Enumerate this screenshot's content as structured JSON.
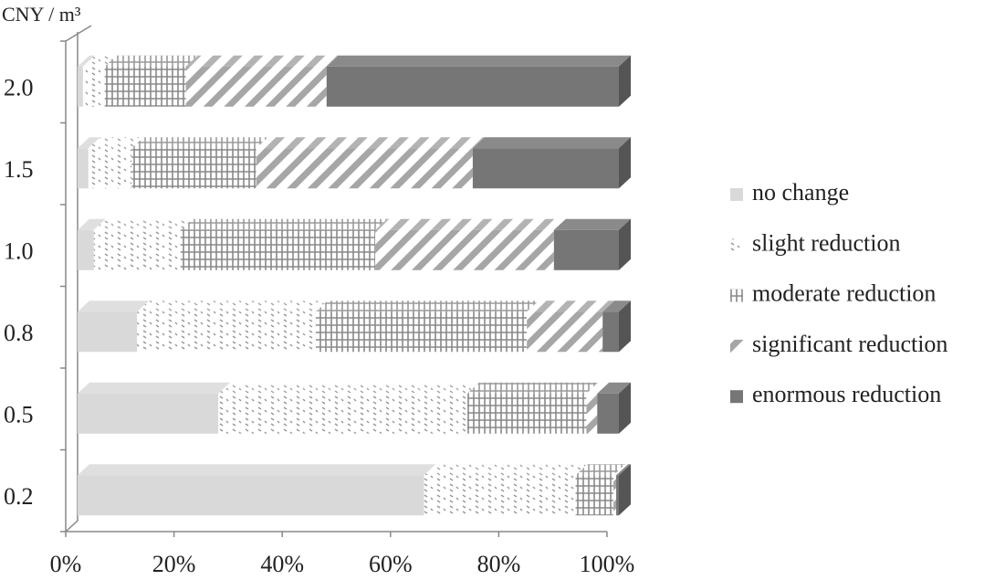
{
  "chart_data": {
    "type": "stacked-bar-horizontal-100",
    "y_axis_title": "CNY / m³",
    "categories": [
      "0.2",
      "0.5",
      "0.8",
      "1.0",
      "1.5",
      "2.0"
    ],
    "series": [
      {
        "name": "no change",
        "color": "#d9d9d9",
        "pattern": "solid",
        "values": [
          64,
          26,
          11,
          3,
          2,
          1
        ]
      },
      {
        "name": "slight reduction",
        "color": "#9a9a9a",
        "pattern": "dots",
        "values": [
          28,
          46,
          33,
          16,
          8,
          4
        ]
      },
      {
        "name": "moderate reduction",
        "color": "#8c8c8c",
        "pattern": "grid",
        "values": [
          7,
          22,
          39,
          36,
          23,
          15
        ]
      },
      {
        "name": "significant reduction",
        "color": "#a6a6a6",
        "pattern": "diagonal",
        "values": [
          0.5,
          2,
          14,
          33,
          40,
          26
        ]
      },
      {
        "name": "enormous reduction",
        "color": "#767676",
        "pattern": "solid",
        "values": [
          0.5,
          4,
          3,
          12,
          27,
          54
        ]
      }
    ],
    "xlim": [
      0,
      100
    ],
    "xticks": [
      {
        "value": 0,
        "label": "0%"
      },
      {
        "value": 20,
        "label": "20%"
      },
      {
        "value": 40,
        "label": "40%"
      },
      {
        "value": 60,
        "label": "60%"
      },
      {
        "value": 80,
        "label": "80%"
      },
      {
        "value": 100,
        "label": "100%"
      }
    ],
    "legend": "right"
  }
}
